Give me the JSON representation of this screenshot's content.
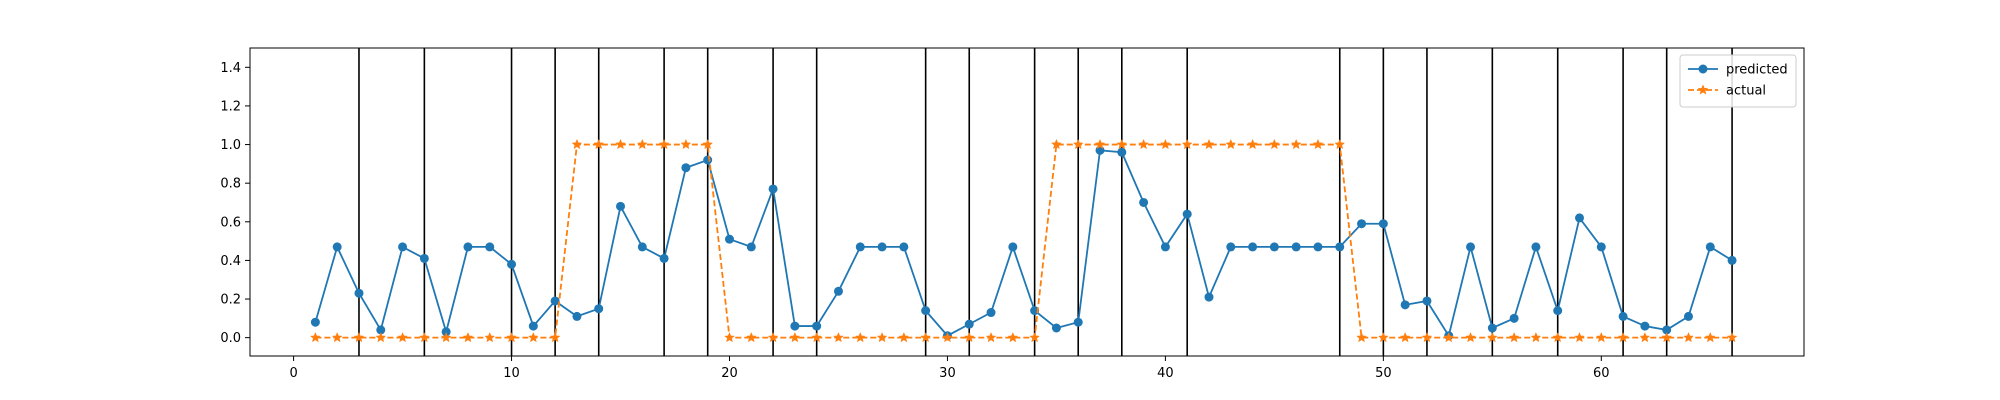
{
  "chart_data": {
    "type": "line",
    "xlim": [
      -2,
      69.3
    ],
    "ylim": [
      -0.095,
      1.5
    ],
    "xticks": [
      0,
      10,
      20,
      30,
      40,
      50,
      60
    ],
    "yticks": [
      0.0,
      0.2,
      0.4,
      0.6,
      0.8,
      1.0,
      1.2,
      1.4
    ],
    "xtick_labels": [
      "0",
      "10",
      "20",
      "30",
      "40",
      "50",
      "60"
    ],
    "ytick_labels": [
      "0.0",
      "0.2",
      "0.4",
      "0.6",
      "0.8",
      "1.0",
      "1.2",
      "1.4"
    ],
    "vlines": [
      3,
      6,
      10,
      12,
      14,
      17,
      19,
      22,
      24,
      29,
      31,
      34,
      36,
      38,
      41,
      48,
      50,
      52,
      55,
      58,
      61,
      63,
      66
    ],
    "legend_position": "top-right",
    "x": [
      1,
      2,
      3,
      4,
      5,
      6,
      7,
      8,
      9,
      10,
      11,
      12,
      13,
      14,
      15,
      16,
      17,
      18,
      19,
      20,
      21,
      22,
      23,
      24,
      25,
      26,
      27,
      28,
      29,
      30,
      31,
      32,
      33,
      34,
      35,
      36,
      37,
      38,
      39,
      40,
      41,
      42,
      43,
      44,
      45,
      46,
      47,
      48,
      49,
      50,
      51,
      52,
      53,
      54,
      55,
      56,
      57,
      58,
      59,
      60,
      61,
      62,
      63,
      64,
      65,
      66
    ],
    "series": [
      {
        "name": "predicted",
        "color": "#1f77b4",
        "marker": "circle",
        "linestyle": "solid",
        "values": [
          0.08,
          0.47,
          0.23,
          0.04,
          0.47,
          0.41,
          0.03,
          0.47,
          0.47,
          0.38,
          0.06,
          0.19,
          0.11,
          0.15,
          0.68,
          0.47,
          0.41,
          0.88,
          0.92,
          0.51,
          0.47,
          0.77,
          0.06,
          0.06,
          0.24,
          0.47,
          0.47,
          0.47,
          0.14,
          0.01,
          0.07,
          0.13,
          0.47,
          0.14,
          0.05,
          0.08,
          0.97,
          0.96,
          0.7,
          0.47,
          0.64,
          0.21,
          0.47,
          0.47,
          0.47,
          0.47,
          0.47,
          0.47,
          0.59,
          0.59,
          0.17,
          0.19,
          0.01,
          0.47,
          0.05,
          0.1,
          0.47,
          0.14,
          0.62,
          0.47,
          0.11,
          0.06,
          0.04,
          0.11,
          0.47,
          0.4
        ]
      },
      {
        "name": "actual",
        "color": "#ff7f0e",
        "marker": "star",
        "linestyle": "dashed",
        "values": [
          0,
          0,
          0,
          0,
          0,
          0,
          0,
          0,
          0,
          0,
          0,
          0,
          1,
          1,
          1,
          1,
          1,
          1,
          1,
          0,
          0,
          0,
          0,
          0,
          0,
          0,
          0,
          0,
          0,
          0,
          0,
          0,
          0,
          0,
          1,
          1,
          1,
          1,
          1,
          1,
          1,
          1,
          1,
          1,
          1,
          1,
          1,
          1,
          0,
          0,
          0,
          0,
          0,
          0,
          0,
          0,
          0,
          0,
          0,
          0,
          0,
          0,
          0,
          0,
          0,
          0
        ]
      }
    ]
  }
}
